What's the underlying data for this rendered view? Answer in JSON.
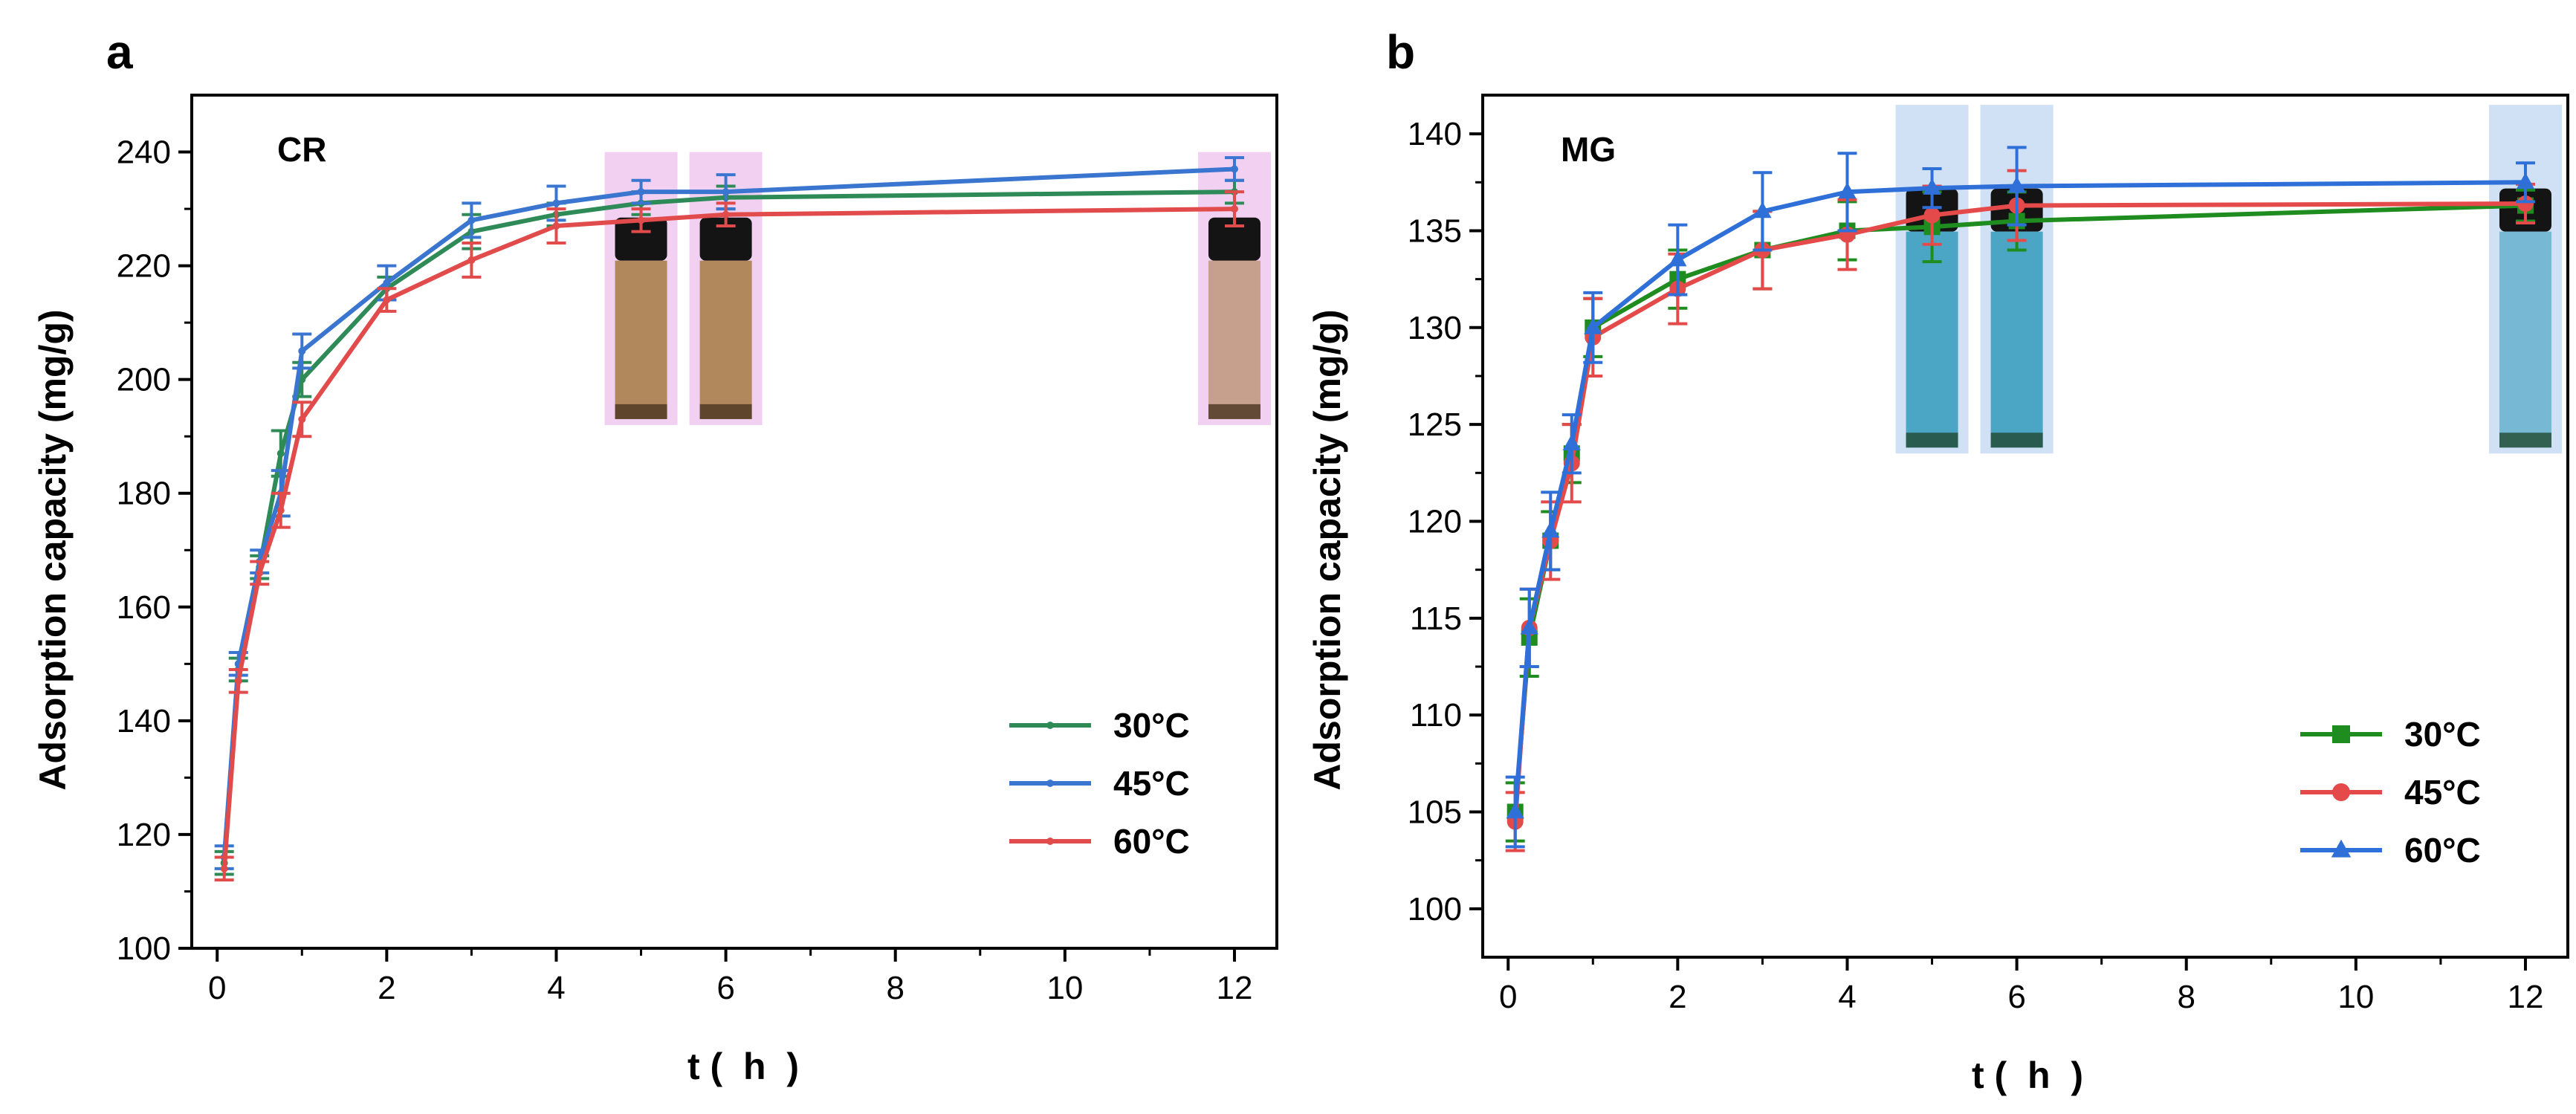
{
  "chart_data": [
    {
      "type": "line",
      "panel_label": "a",
      "annotation": "CR",
      "xlabel": "t (  h  )",
      "ylabel": "Adsorption capacity (mg/g)",
      "xlim": [
        -0.3,
        12.5
      ],
      "ylim": [
        100,
        250
      ],
      "xticks": [
        0,
        2,
        4,
        6,
        8,
        10,
        12
      ],
      "yticks": [
        100,
        120,
        140,
        160,
        180,
        200,
        220,
        240
      ],
      "x": [
        0.083,
        0.25,
        0.5,
        0.75,
        1,
        2,
        3,
        4,
        5,
        6,
        12
      ],
      "legend_position": "lower-right",
      "marker_style": "small",
      "highlight": {
        "times": [
          5,
          6,
          12
        ],
        "y_range": [
          192,
          240
        ],
        "color": "#f0c8f0"
      },
      "series": [
        {
          "name": "30°C",
          "color": "#2e8b57",
          "values": [
            115,
            149,
            167,
            187,
            200,
            216,
            226,
            229,
            231,
            232,
            233
          ],
          "errors": [
            2,
            2,
            2,
            4,
            3,
            2,
            3,
            2,
            2,
            2,
            2
          ]
        },
        {
          "name": "45°C",
          "color": "#3a76d0",
          "values": [
            116,
            150,
            168,
            180,
            205,
            217,
            228,
            231,
            233,
            233,
            237
          ],
          "errors": [
            2,
            2,
            2,
            4,
            3,
            3,
            3,
            3,
            2,
            3,
            2
          ]
        },
        {
          "name": "60°C",
          "color": "#e24b4b",
          "values": [
            114,
            147,
            166,
            177,
            193,
            214,
            221,
            227,
            228,
            229,
            230
          ],
          "errors": [
            2,
            2,
            2,
            3,
            3,
            2,
            3,
            3,
            2,
            2,
            3
          ]
        }
      ]
    },
    {
      "type": "line",
      "panel_label": "b",
      "annotation": "MG",
      "xlabel": "t (  h  )",
      "ylabel": "Adsorption capacity (mg/g)",
      "xlim": [
        -0.3,
        12.5
      ],
      "ylim": [
        97.5,
        142
      ],
      "xticks": [
        0,
        2,
        4,
        6,
        8,
        10,
        12
      ],
      "yticks": [
        100,
        105,
        110,
        115,
        120,
        125,
        130,
        135,
        140
      ],
      "x": [
        0.083,
        0.25,
        0.5,
        0.75,
        1,
        2,
        3,
        4,
        5,
        6,
        12
      ],
      "legend_position": "lower-right",
      "marker_style": "large",
      "highlight": {
        "times": [
          5,
          6,
          12
        ],
        "y_range": [
          123.5,
          141.5
        ],
        "color": "#c8dcf5"
      },
      "series": [
        {
          "name": "30°C",
          "color": "#1e8c1e",
          "values": [
            105,
            114,
            119,
            123.5,
            130,
            132.5,
            134,
            135,
            135.2,
            135.5,
            136.3
          ],
          "errors": [
            1.5,
            2,
            1.5,
            1.5,
            1.5,
            1.5,
            2,
            1.5,
            1.8,
            1.5,
            0.8
          ],
          "marker": "square"
        },
        {
          "name": "45°C",
          "color": "#e54a4a",
          "values": [
            104.5,
            114.5,
            119,
            123,
            129.5,
            132,
            134,
            134.8,
            135.8,
            136.3,
            136.4
          ],
          "errors": [
            1.5,
            2,
            2,
            2,
            2,
            1.8,
            2,
            1.8,
            1.5,
            1.8,
            1
          ],
          "marker": "circle"
        },
        {
          "name": "60°C",
          "color": "#2f6fd8",
          "values": [
            105,
            114.5,
            119.5,
            124,
            130,
            133.5,
            136,
            137,
            137.2,
            137.3,
            137.5
          ],
          "errors": [
            1.8,
            2,
            2,
            1.5,
            1.8,
            1.8,
            2,
            2,
            1,
            2,
            1
          ],
          "marker": "triangle"
        }
      ]
    }
  ],
  "vial_colors": {
    "cr_cap": "#141414",
    "cr_liquid": "#a8804a",
    "cr_sediment": "#4a3420",
    "mg_cap": "#141414",
    "mg_liquid": "#3c9fc0",
    "mg_sediment": "#204a30"
  }
}
